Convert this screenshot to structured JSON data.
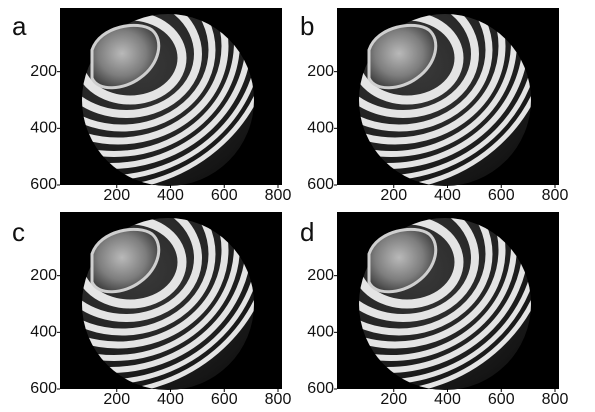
{
  "panels": [
    {
      "label": "a",
      "xlim": [
        0,
        800
      ],
      "ylim": [
        0,
        600
      ],
      "xticks": [
        200,
        400,
        600,
        800
      ],
      "yticks": [
        200,
        400,
        600
      ]
    },
    {
      "label": "b",
      "xlim": [
        0,
        800
      ],
      "ylim": [
        0,
        600
      ],
      "xticks": [
        200,
        400,
        600,
        800
      ],
      "yticks": [
        200,
        400,
        600
      ]
    },
    {
      "label": "c",
      "xlim": [
        0,
        800
      ],
      "ylim": [
        0,
        600
      ],
      "xticks": [
        200,
        400,
        600,
        800
      ],
      "yticks": [
        200,
        400,
        600
      ]
    },
    {
      "label": "d",
      "xlim": [
        0,
        800
      ],
      "ylim": [
        0,
        600
      ],
      "xticks": [
        200,
        400,
        600,
        800
      ],
      "yticks": [
        200,
        400,
        600
      ]
    }
  ]
}
